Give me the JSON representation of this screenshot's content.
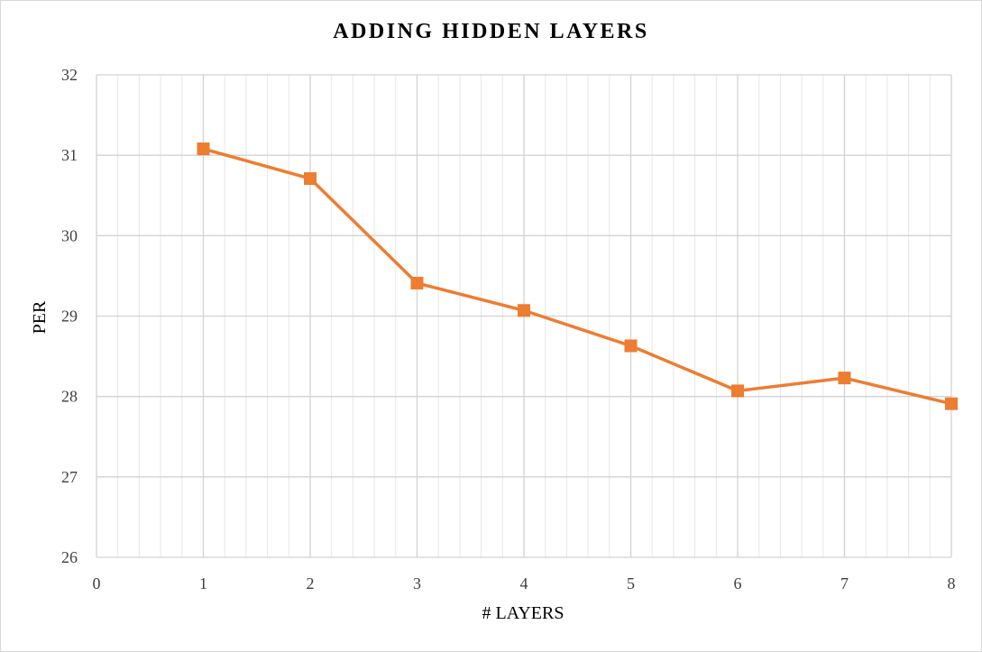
{
  "chart_data": {
    "type": "line",
    "title": "ADDING HIDDEN LAYERS",
    "xlabel": "# LAYERS",
    "ylabel": "PER",
    "xlim": [
      0,
      8
    ],
    "ylim": [
      26,
      32
    ],
    "x_ticks": [
      "0",
      "1",
      "2",
      "3",
      "4",
      "5",
      "6",
      "7",
      "8"
    ],
    "y_ticks": [
      "26",
      "27",
      "28",
      "29",
      "30",
      "31",
      "32"
    ],
    "grid": true,
    "legend": "none",
    "series": [
      {
        "color": "#ED7D31",
        "marker": "square",
        "x": [
          1,
          2,
          3,
          4,
          5,
          6,
          7,
          8
        ],
        "y": [
          31.08,
          30.71,
          29.41,
          29.07,
          28.63,
          28.07,
          28.23,
          27.91
        ]
      }
    ]
  }
}
